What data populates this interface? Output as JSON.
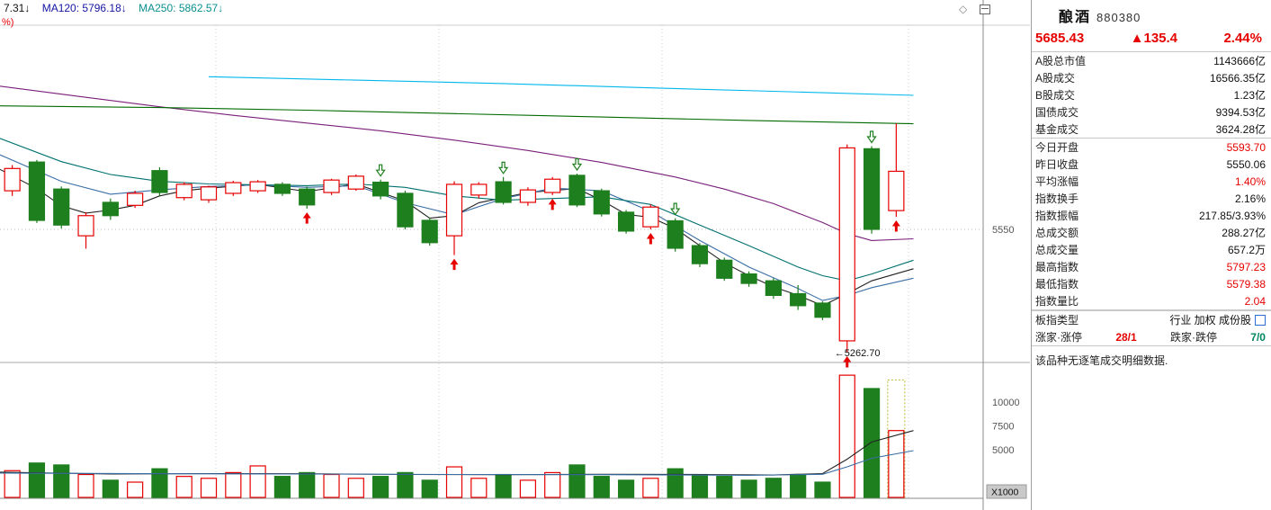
{
  "panel": {
    "title": "酿酒",
    "code": "880380",
    "price": "5685.43",
    "change": "▲135.4",
    "change_pct": "2.44%",
    "rows": [
      {
        "label": "A股总市值",
        "value": "1143666亿",
        "c": "k"
      },
      {
        "label": "A股成交",
        "value": "16566.35亿",
        "c": "k"
      },
      {
        "label": "B股成交",
        "value": "1.23亿",
        "c": "k"
      },
      {
        "label": "国债成交",
        "value": "9394.53亿",
        "c": "k"
      },
      {
        "label": "基金成交",
        "value": "3624.28亿",
        "c": "k"
      },
      {
        "label": "今日开盘",
        "value": "5593.70",
        "c": "r"
      },
      {
        "label": "昨日收盘",
        "value": "5550.06",
        "c": "k"
      },
      {
        "label": "平均涨幅",
        "value": "1.40%",
        "c": "r"
      },
      {
        "label": "指数换手",
        "value": "2.16%",
        "c": "k"
      },
      {
        "label": "指数振幅",
        "value": "217.85/3.93%",
        "c": "k"
      },
      {
        "label": "总成交额",
        "value": "288.27亿",
        "c": "k"
      },
      {
        "label": "总成交量",
        "value": "657.2万",
        "c": "k"
      },
      {
        "label": "最高指数",
        "value": "5797.23",
        "c": "r"
      },
      {
        "label": "最低指数",
        "value": "5579.38",
        "c": "r"
      },
      {
        "label": "指数量比",
        "value": "2.04",
        "c": "r"
      }
    ],
    "separators_after": [
      4,
      14
    ],
    "type_row": {
      "label": "板指类型",
      "value": "行业 加权 成份股"
    },
    "counts": {
      "up_label": "涨家·涨停",
      "up": "28/1",
      "down_label": "跌家·跌停",
      "down": "7/0"
    },
    "note": "该品种无逐笔成交明细数据."
  },
  "chart_data": {
    "type": "candlestick+volume",
    "legend": {
      "fragment_1": "7.31↓",
      "ma120_label": "MA120: 5796.18↓",
      "ma250_label": "MA250: 5862.57↓",
      "fragment_2": "%)"
    },
    "scale": {
      "price_top": 6022,
      "price_bottom": 5250,
      "volume_max": 13000
    },
    "price_axis_labels": [
      {
        "p": 5550,
        "t": "5550"
      }
    ],
    "volume_axis_labels": [
      {
        "v": 10000,
        "t": "10000"
      },
      {
        "v": 7500,
        "t": "7500"
      },
      {
        "v": 5000,
        "t": "5000"
      }
    ],
    "volume_unit": "X1000",
    "low_annotation": {
      "text": "←5262.70",
      "index": 34,
      "price": 5262.7
    },
    "colors": {
      "up": "#e60000",
      "down": "#1d7f1d",
      "projected": "#b8b832"
    },
    "candles": [
      [
        5640,
        5700,
        5628,
        5692
      ],
      [
        5707,
        5712,
        5565,
        5571
      ],
      [
        5644,
        5650,
        5552,
        5560
      ],
      [
        5535,
        5590,
        5505,
        5582
      ],
      [
        5613,
        5622,
        5572,
        5582
      ],
      [
        5606,
        5640,
        5600,
        5634
      ],
      [
        5687,
        5695,
        5628,
        5636
      ],
      [
        5624,
        5660,
        5618,
        5655
      ],
      [
        5619,
        5652,
        5612,
        5649
      ],
      [
        5634,
        5663,
        5628,
        5659
      ],
      [
        5640,
        5665,
        5635,
        5661
      ],
      [
        5655,
        5660,
        5628,
        5634
      ],
      [
        5644,
        5650,
        5598,
        5607
      ],
      [
        5636,
        5668,
        5630,
        5665
      ],
      [
        5644,
        5678,
        5640,
        5674
      ],
      [
        5660,
        5666,
        5620,
        5628
      ],
      [
        5634,
        5640,
        5550,
        5556
      ],
      [
        5571,
        5578,
        5512,
        5519
      ],
      [
        5535,
        5662,
        5490,
        5655
      ],
      [
        5630,
        5660,
        5622,
        5655
      ],
      [
        5661,
        5672,
        5608,
        5613
      ],
      [
        5613,
        5648,
        5605,
        5642
      ],
      [
        5636,
        5672,
        5630,
        5667
      ],
      [
        5676,
        5680,
        5602,
        5607
      ],
      [
        5640,
        5645,
        5580,
        5586
      ],
      [
        5590,
        5595,
        5540,
        5546
      ],
      [
        5556,
        5608,
        5550,
        5602
      ],
      [
        5570,
        5576,
        5498,
        5506
      ],
      [
        5512,
        5518,
        5462,
        5470
      ],
      [
        5478,
        5484,
        5430,
        5436
      ],
      [
        5446,
        5452,
        5416,
        5424
      ],
      [
        5430,
        5436,
        5388,
        5396
      ],
      [
        5400,
        5420,
        5362,
        5372
      ],
      [
        5378,
        5382,
        5338,
        5345
      ],
      [
        5290,
        5748,
        5262.7,
        5740
      ],
      [
        5738,
        5744,
        5540,
        5550.06
      ],
      [
        5593.7,
        5797.23,
        5579.38,
        5685.43
      ]
    ],
    "markers": {
      "buy": [
        12,
        18,
        22,
        26,
        34,
        36
      ],
      "sell": [
        15,
        20,
        23,
        27,
        35
      ]
    },
    "ma_lines": [
      {
        "name": "MA5",
        "color": "#222222",
        "points": [
          [
            -0.5,
            5690
          ],
          [
            1,
            5645
          ],
          [
            2,
            5605
          ],
          [
            3,
            5588
          ],
          [
            4,
            5595
          ],
          [
            5,
            5606
          ],
          [
            6,
            5628
          ],
          [
            7,
            5640
          ],
          [
            8,
            5646
          ],
          [
            10,
            5655
          ],
          [
            12,
            5638
          ],
          [
            14,
            5656
          ],
          [
            16,
            5616
          ],
          [
            17,
            5576
          ],
          [
            18,
            5582
          ],
          [
            19,
            5612
          ],
          [
            21,
            5636
          ],
          [
            23,
            5645
          ],
          [
            24,
            5618
          ],
          [
            25,
            5585
          ],
          [
            26,
            5578
          ],
          [
            27,
            5552
          ],
          [
            28,
            5512
          ],
          [
            29,
            5472
          ],
          [
            30,
            5442
          ],
          [
            31,
            5416
          ],
          [
            32,
            5396
          ],
          [
            33,
            5372
          ],
          [
            34,
            5400
          ],
          [
            35,
            5430
          ],
          [
            36.7,
            5458
          ]
        ]
      },
      {
        "name": "MA10",
        "color": "#3a6ea5",
        "points": [
          [
            -0.5,
            5724
          ],
          [
            2,
            5662
          ],
          [
            4,
            5632
          ],
          [
            6,
            5642
          ],
          [
            8,
            5650
          ],
          [
            10,
            5654
          ],
          [
            12,
            5648
          ],
          [
            14,
            5652
          ],
          [
            16,
            5612
          ],
          [
            18,
            5584
          ],
          [
            20,
            5622
          ],
          [
            22,
            5646
          ],
          [
            24,
            5640
          ],
          [
            26,
            5592
          ],
          [
            28,
            5524
          ],
          [
            30,
            5462
          ],
          [
            32,
            5412
          ],
          [
            33,
            5384
          ],
          [
            34,
            5396
          ],
          [
            35,
            5414
          ],
          [
            36.7,
            5436
          ]
        ]
      },
      {
        "name": "MA20",
        "color": "#007070",
        "points": [
          [
            -0.5,
            5762
          ],
          [
            2,
            5708
          ],
          [
            4,
            5678
          ],
          [
            6,
            5662
          ],
          [
            8,
            5656
          ],
          [
            10,
            5654
          ],
          [
            12,
            5652
          ],
          [
            14,
            5656
          ],
          [
            16,
            5648
          ],
          [
            18,
            5628
          ],
          [
            20,
            5618
          ],
          [
            22,
            5622
          ],
          [
            24,
            5626
          ],
          [
            26,
            5608
          ],
          [
            28,
            5560
          ],
          [
            30,
            5512
          ],
          [
            32,
            5462
          ],
          [
            33,
            5442
          ],
          [
            34,
            5430
          ],
          [
            35,
            5446
          ],
          [
            36.7,
            5478
          ]
        ]
      },
      {
        "name": "MA60",
        "color": "#7a1f7a",
        "points": [
          [
            -0.5,
            5884
          ],
          [
            3,
            5858
          ],
          [
            6,
            5836
          ],
          [
            9,
            5816
          ],
          [
            12,
            5798
          ],
          [
            15,
            5780
          ],
          [
            18,
            5758
          ],
          [
            21,
            5734
          ],
          [
            24,
            5706
          ],
          [
            27,
            5672
          ],
          [
            29,
            5644
          ],
          [
            31,
            5610
          ],
          [
            33,
            5566
          ],
          [
            34,
            5540
          ],
          [
            35,
            5524
          ],
          [
            36.7,
            5528
          ]
        ]
      },
      {
        "name": "MA120",
        "color": "#006b00",
        "points": [
          [
            -0.5,
            5838
          ],
          [
            6,
            5834
          ],
          [
            12,
            5828
          ],
          [
            18,
            5820
          ],
          [
            24,
            5812
          ],
          [
            30,
            5804
          ],
          [
            36.7,
            5796.18
          ]
        ]
      },
      {
        "name": "MA250",
        "color": "#00b7eb",
        "points": [
          [
            8,
            5906
          ],
          [
            14,
            5898
          ],
          [
            20,
            5890
          ],
          [
            26,
            5880
          ],
          [
            31,
            5872
          ],
          [
            36.7,
            5862.57
          ]
        ]
      }
    ],
    "volume": {
      "values": [
        2800,
        3600,
        3400,
        2400,
        1800,
        1600,
        3000,
        2200,
        2000,
        2600,
        3300,
        2200,
        2600,
        2400,
        2000,
        2200,
        2600,
        1800,
        3200,
        2000,
        2400,
        1800,
        2600,
        3400,
        2200,
        1800,
        2000,
        3000,
        2400,
        2200,
        1800,
        2000,
        2400,
        1600,
        12800,
        11400,
        7000
      ],
      "projected_last": 12300,
      "ma": [
        {
          "color": "#222222",
          "points": [
            [
              -0.5,
              2650
            ],
            [
              4,
              2450
            ],
            [
              8,
              2500
            ],
            [
              12,
              2480
            ],
            [
              16,
              2400
            ],
            [
              20,
              2380
            ],
            [
              24,
              2420
            ],
            [
              28,
              2400
            ],
            [
              31,
              2350
            ],
            [
              33,
              2500
            ],
            [
              34,
              4000
            ],
            [
              35,
              5800
            ],
            [
              36.7,
              7000
            ]
          ]
        },
        {
          "color": "#3a6ea5",
          "points": [
            [
              -0.5,
              2550
            ],
            [
              6,
              2480
            ],
            [
              12,
              2450
            ],
            [
              18,
              2400
            ],
            [
              24,
              2380
            ],
            [
              30,
              2320
            ],
            [
              33,
              2420
            ],
            [
              34,
              3200
            ],
            [
              35,
              4100
            ],
            [
              36.7,
              4900
            ]
          ]
        }
      ]
    }
  }
}
